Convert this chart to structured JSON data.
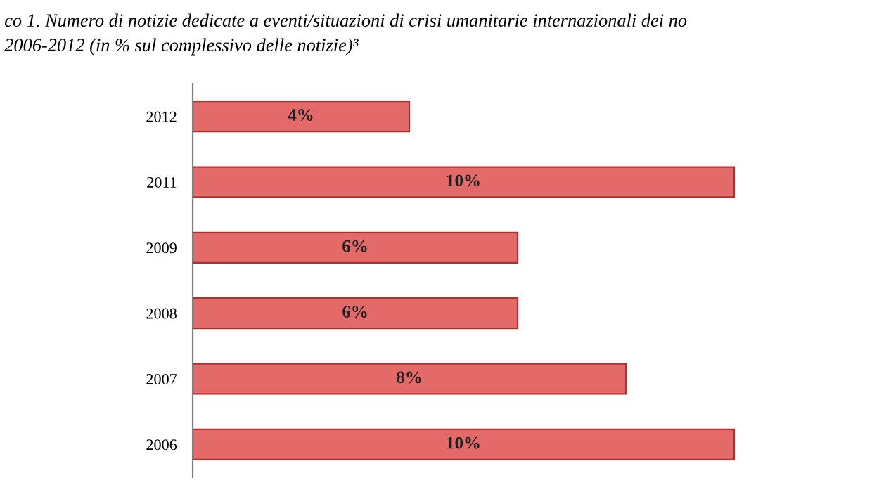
{
  "chart_data": {
    "type": "bar",
    "orientation": "horizontal",
    "title": "co 1. Numero di notizie dedicate a eventi/situazioni di crisi umanitarie internazionali dei no",
    "subtitle": "2006-2012 (in % sul complessivo delle notizie)³",
    "categories": [
      "2012",
      "2011",
      "2009",
      "2008",
      "2007",
      "2006"
    ],
    "values": [
      4,
      10,
      6,
      6,
      8,
      10
    ],
    "value_labels": [
      "4%",
      "10%",
      "6%",
      "6%",
      "8%",
      "10%"
    ],
    "color": "#e46a6a",
    "tick_labels": "y",
    "grid": false
  }
}
